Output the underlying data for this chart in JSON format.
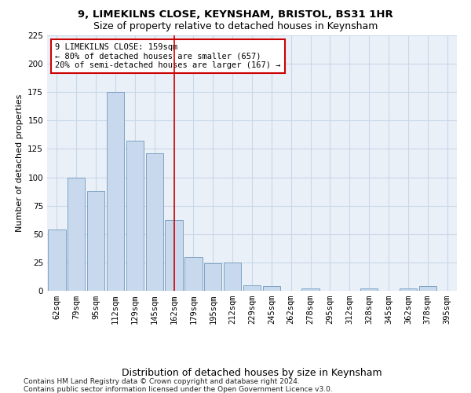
{
  "title1": "9, LIMEKILNS CLOSE, KEYNSHAM, BRISTOL, BS31 1HR",
  "title2": "Size of property relative to detached houses in Keynsham",
  "xlabel": "Distribution of detached houses by size in Keynsham",
  "ylabel": "Number of detached properties",
  "categories": [
    "62sqm",
    "79sqm",
    "95sqm",
    "112sqm",
    "129sqm",
    "145sqm",
    "162sqm",
    "179sqm",
    "195sqm",
    "212sqm",
    "229sqm",
    "245sqm",
    "262sqm",
    "278sqm",
    "295sqm",
    "312sqm",
    "328sqm",
    "345sqm",
    "362sqm",
    "378sqm",
    "395sqm"
  ],
  "values": [
    54,
    100,
    88,
    175,
    132,
    121,
    62,
    30,
    24,
    25,
    5,
    4,
    0,
    2,
    0,
    0,
    2,
    0,
    2,
    4,
    0
  ],
  "bar_color": "#c8d9ee",
  "bar_edge_color": "#7099bb",
  "vline_index": 6,
  "vline_color": "#cc0000",
  "annotation_text": "9 LIMEKILNS CLOSE: 159sqm\n← 80% of detached houses are smaller (657)\n20% of semi-detached houses are larger (167) →",
  "annotation_box_color": "#ffffff",
  "annotation_box_edge": "#cc0000",
  "footer1": "Contains HM Land Registry data © Crown copyright and database right 2024.",
  "footer2": "Contains public sector information licensed under the Open Government Licence v3.0.",
  "ylim": [
    0,
    225
  ],
  "title1_fontsize": 9.5,
  "title2_fontsize": 9,
  "xlabel_fontsize": 9,
  "ylabel_fontsize": 8,
  "tick_fontsize": 7.5,
  "annotation_fontsize": 7.5,
  "footer_fontsize": 6.5,
  "background_color": "#ffffff",
  "grid_color": "#c8d8e8",
  "ax_bg_color": "#eaf0f8"
}
